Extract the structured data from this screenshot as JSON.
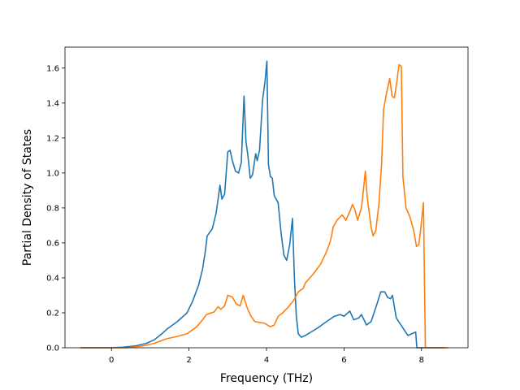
{
  "chart_data": {
    "type": "line",
    "title": "",
    "xlabel": "Frequency (THz)",
    "ylabel": "Partial Density of States",
    "xlim": [
      -1.2,
      9.2
    ],
    "ylim": [
      0.0,
      1.72
    ],
    "xticks": [
      0,
      2,
      4,
      6,
      8
    ],
    "xtick_labels": [
      "0",
      "2",
      "4",
      "6",
      "8"
    ],
    "yticks": [
      0.0,
      0.2,
      0.4,
      0.6,
      0.8,
      1.0,
      1.2,
      1.4,
      1.6
    ],
    "ytick_labels": [
      "0.0",
      "0.2",
      "0.4",
      "0.6",
      "0.8",
      "1.0",
      "1.2",
      "1.4",
      "1.6"
    ],
    "grid": false,
    "legend": "none",
    "series": [
      {
        "color": "#1f77b4",
        "points": [
          [
            -0.8,
            0.0
          ],
          [
            0.0,
            0.0
          ],
          [
            0.3,
            0.003
          ],
          [
            0.6,
            0.01
          ],
          [
            0.9,
            0.025
          ],
          [
            1.1,
            0.045
          ],
          [
            1.3,
            0.08
          ],
          [
            1.45,
            0.11
          ],
          [
            1.7,
            0.15
          ],
          [
            1.95,
            0.2
          ],
          [
            2.1,
            0.27
          ],
          [
            2.25,
            0.36
          ],
          [
            2.35,
            0.45
          ],
          [
            2.42,
            0.55
          ],
          [
            2.47,
            0.64
          ],
          [
            2.6,
            0.68
          ],
          [
            2.7,
            0.77
          ],
          [
            2.8,
            0.93
          ],
          [
            2.85,
            0.85
          ],
          [
            2.92,
            0.88
          ],
          [
            3.0,
            1.12
          ],
          [
            3.06,
            1.13
          ],
          [
            3.12,
            1.07
          ],
          [
            3.2,
            1.01
          ],
          [
            3.28,
            1.0
          ],
          [
            3.35,
            1.06
          ],
          [
            3.42,
            1.44
          ],
          [
            3.47,
            1.18
          ],
          [
            3.52,
            1.1
          ],
          [
            3.58,
            0.97
          ],
          [
            3.64,
            0.99
          ],
          [
            3.72,
            1.11
          ],
          [
            3.76,
            1.07
          ],
          [
            3.82,
            1.13
          ],
          [
            3.9,
            1.42
          ],
          [
            3.96,
            1.52
          ],
          [
            4.01,
            1.64
          ],
          [
            4.05,
            1.05
          ],
          [
            4.1,
            0.98
          ],
          [
            4.15,
            0.97
          ],
          [
            4.2,
            0.87
          ],
          [
            4.3,
            0.83
          ],
          [
            4.38,
            0.65
          ],
          [
            4.45,
            0.53
          ],
          [
            4.52,
            0.5
          ],
          [
            4.6,
            0.59
          ],
          [
            4.67,
            0.74
          ],
          [
            4.72,
            0.4
          ],
          [
            4.77,
            0.18
          ],
          [
            4.82,
            0.08
          ],
          [
            4.9,
            0.06
          ],
          [
            5.0,
            0.07
          ],
          [
            5.3,
            0.11
          ],
          [
            5.55,
            0.15
          ],
          [
            5.75,
            0.18
          ],
          [
            5.9,
            0.19
          ],
          [
            6.0,
            0.18
          ],
          [
            6.15,
            0.21
          ],
          [
            6.25,
            0.16
          ],
          [
            6.38,
            0.17
          ],
          [
            6.45,
            0.19
          ],
          [
            6.58,
            0.13
          ],
          [
            6.7,
            0.15
          ],
          [
            6.85,
            0.25
          ],
          [
            6.95,
            0.32
          ],
          [
            7.05,
            0.32
          ],
          [
            7.12,
            0.29
          ],
          [
            7.2,
            0.28
          ],
          [
            7.25,
            0.3
          ],
          [
            7.35,
            0.17
          ],
          [
            7.5,
            0.12
          ],
          [
            7.65,
            0.07
          ],
          [
            7.75,
            0.08
          ],
          [
            7.85,
            0.09
          ],
          [
            7.88,
            0.0
          ],
          [
            8.6,
            0.0
          ]
        ]
      },
      {
        "color": "#ff7f0e",
        "points": [
          [
            -0.8,
            0.0
          ],
          [
            0.0,
            0.0
          ],
          [
            0.4,
            0.0
          ],
          [
            0.8,
            0.01
          ],
          [
            1.1,
            0.025
          ],
          [
            1.4,
            0.05
          ],
          [
            1.7,
            0.065
          ],
          [
            1.95,
            0.08
          ],
          [
            2.2,
            0.12
          ],
          [
            2.35,
            0.16
          ],
          [
            2.45,
            0.19
          ],
          [
            2.65,
            0.205
          ],
          [
            2.75,
            0.235
          ],
          [
            2.82,
            0.22
          ],
          [
            2.92,
            0.24
          ],
          [
            3.0,
            0.3
          ],
          [
            3.12,
            0.29
          ],
          [
            3.22,
            0.25
          ],
          [
            3.32,
            0.24
          ],
          [
            3.4,
            0.3
          ],
          [
            3.5,
            0.23
          ],
          [
            3.6,
            0.18
          ],
          [
            3.7,
            0.15
          ],
          [
            3.82,
            0.145
          ],
          [
            3.95,
            0.14
          ],
          [
            4.1,
            0.12
          ],
          [
            4.2,
            0.13
          ],
          [
            4.3,
            0.18
          ],
          [
            4.42,
            0.2
          ],
          [
            4.55,
            0.23
          ],
          [
            4.7,
            0.27
          ],
          [
            4.82,
            0.32
          ],
          [
            4.95,
            0.34
          ],
          [
            5.0,
            0.37
          ],
          [
            5.2,
            0.42
          ],
          [
            5.4,
            0.48
          ],
          [
            5.55,
            0.55
          ],
          [
            5.65,
            0.61
          ],
          [
            5.72,
            0.69
          ],
          [
            5.82,
            0.73
          ],
          [
            5.95,
            0.76
          ],
          [
            6.05,
            0.73
          ],
          [
            6.15,
            0.78
          ],
          [
            6.22,
            0.82
          ],
          [
            6.28,
            0.79
          ],
          [
            6.35,
            0.73
          ],
          [
            6.45,
            0.8
          ],
          [
            6.5,
            0.9
          ],
          [
            6.55,
            1.01
          ],
          [
            6.6,
            0.86
          ],
          [
            6.7,
            0.69
          ],
          [
            6.75,
            0.64
          ],
          [
            6.82,
            0.67
          ],
          [
            6.9,
            0.82
          ],
          [
            6.97,
            1.05
          ],
          [
            7.02,
            1.36
          ],
          [
            7.1,
            1.46
          ],
          [
            7.18,
            1.54
          ],
          [
            7.24,
            1.44
          ],
          [
            7.3,
            1.43
          ],
          [
            7.35,
            1.5
          ],
          [
            7.42,
            1.62
          ],
          [
            7.48,
            1.61
          ],
          [
            7.52,
            0.98
          ],
          [
            7.6,
            0.8
          ],
          [
            7.7,
            0.75
          ],
          [
            7.8,
            0.67
          ],
          [
            7.87,
            0.58
          ],
          [
            7.93,
            0.59
          ],
          [
            7.98,
            0.68
          ],
          [
            8.05,
            0.83
          ],
          [
            8.1,
            0.0
          ],
          [
            8.7,
            0.0
          ]
        ]
      }
    ]
  }
}
